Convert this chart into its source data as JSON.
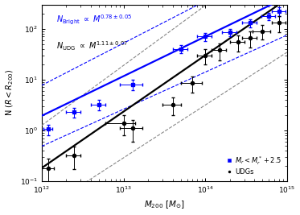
{
  "xlim": [
    1000000000000.0,
    1000000000000000.0
  ],
  "ylim": [
    0.1,
    300
  ],
  "xlabel": "$M_{200}$ [$M_{\\odot}$]",
  "ylabel": "N ($R$$<$$R_{200}$)",
  "annotation_blue": "$N_{\\rm Bright}$ $\\propto$ $M^{0.78\\pm0.05}$",
  "annotation_black": "$N_{\\rm UDG}$ $\\propto$ $M^{1.11\\pm0.07}$",
  "legend_blue_label": "$M_r < M_r^* + 2.5$",
  "legend_black_label": "UDGs",
  "blue_points_x": [
    1200000000000.0,
    2500000000000.0,
    5000000000000.0,
    13000000000000.0,
    50000000000000.0,
    100000000000000.0,
    200000000000000.0,
    350000000000000.0,
    600000000000000.0,
    800000000000000.0
  ],
  "blue_points_y": [
    1.05,
    2.3,
    3.2,
    8.0,
    40.0,
    70.0,
    85.0,
    130.0,
    175.0,
    220.0
  ],
  "blue_xerr_lo": [
    150000000000.0,
    500000000000.0,
    1000000000000.0,
    4000000000000.0,
    10000000000000.0,
    20000000000000.0,
    40000000000000.0,
    70000000000000.0,
    120000000000000.0,
    150000000000000.0
  ],
  "blue_xerr_hi": [
    150000000000.0,
    500000000000.0,
    1000000000000.0,
    4000000000000.0,
    10000000000000.0,
    20000000000000.0,
    40000000000000.0,
    70000000000000.0,
    120000000000000.0,
    150000000000000.0
  ],
  "blue_yerr_lo": [
    0.25,
    0.5,
    0.7,
    1.8,
    7.0,
    12.0,
    15.0,
    22.0,
    30.0,
    40.0
  ],
  "blue_yerr_hi": [
    0.25,
    0.5,
    0.7,
    1.8,
    7.0,
    12.0,
    15.0,
    22.0,
    30.0,
    40.0
  ],
  "black_points_x": [
    1200000000000.0,
    2500000000000.0,
    10000000000000.0,
    13000000000000.0,
    40000000000000.0,
    70000000000000.0,
    100000000000000.0,
    150000000000000.0,
    250000000000000.0,
    350000000000000.0,
    500000000000000.0,
    800000000000000.0
  ],
  "black_points_y": [
    0.18,
    0.32,
    1.4,
    1.1,
    3.2,
    8.5,
    30.0,
    38.0,
    55.0,
    65.0,
    90.0,
    130.0
  ],
  "black_xerr_lo": [
    200000000000.0,
    500000000000.0,
    4000000000000.0,
    4000000000000.0,
    10000000000000.0,
    20000000000000.0,
    20000000000000.0,
    30000000000000.0,
    50000000000000.0,
    70000000000000.0,
    120000000000000.0,
    150000000000000.0
  ],
  "black_xerr_hi": [
    200000000000.0,
    500000000000.0,
    4000000000000.0,
    4000000000000.0,
    10000000000000.0,
    20000000000000.0,
    20000000000000.0,
    30000000000000.0,
    50000000000000.0,
    70000000000000.0,
    120000000000000.0,
    150000000000000.0
  ],
  "black_yerr_lo": [
    0.1,
    0.15,
    0.6,
    0.5,
    1.2,
    3.0,
    10.0,
    14.0,
    20.0,
    22.0,
    28.0,
    45.0
  ],
  "black_yerr_hi": [
    0.1,
    0.15,
    0.6,
    0.5,
    1.2,
    3.0,
    10.0,
    14.0,
    20.0,
    22.0,
    28.0,
    45.0
  ],
  "blue_fit_slope": 0.78,
  "blue_fit_anchor_x": 100000000000000.0,
  "blue_fit_anchor_y": 70.0,
  "black_fit_slope": 1.11,
  "black_fit_anchor_x": 100000000000000.0,
  "black_fit_anchor_y": 30.0,
  "blue_color": "#0000ff",
  "black_color": "#000000",
  "dashed_color": "#888888",
  "background_color": "#ffffff"
}
